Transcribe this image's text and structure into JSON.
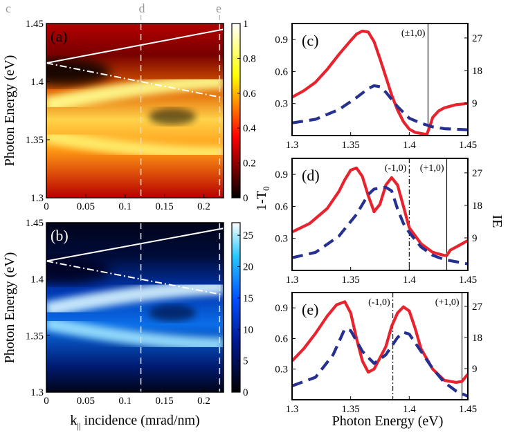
{
  "colors": {
    "solid": "#e8232d",
    "dashed": "#25308f",
    "side_left": "#e8232d",
    "side_right": "#2c3690"
  },
  "top_labels": [
    "c",
    "d",
    "e"
  ],
  "shared": {
    "left_ylabel": "Photon Energy (eV)",
    "bottom_xlabel": "k",
    "bottom_xlabel_sub": "||",
    "bottom_xlabel_rest": " incidence (mrad/nm)",
    "right_xlabel": "Photon Energy (eV)",
    "side_label_left": "1-T",
    "side_label_left_sub": "0",
    "side_label_right": "IE"
  },
  "chart_data": [
    {
      "id": "a",
      "panel_label": "(a)",
      "type": "heatmap",
      "colormap": "hot",
      "xlim": [
        0,
        0.225
      ],
      "ylim": [
        1.3,
        1.45
      ],
      "xticks": [
        "0",
        "0.05",
        "0.1",
        "0.15",
        "0.2"
      ],
      "yticks": [
        "1.3",
        "1.35",
        "1.4",
        "1.45"
      ],
      "colorbar_ticks": [
        "0",
        "0.2",
        "0.4",
        "0.6",
        "0.8",
        "1"
      ],
      "clim": [
        0,
        1
      ],
      "features": {
        "upper_mode": [
          1.345,
          1.3425
        ],
        "lower_mode": [
          1.392,
          1.392
        ],
        "crossing_k": 0.125,
        "solid_line": [
          1.416,
          1.445
        ],
        "dashdot_line": [
          1.416,
          1.386
        ],
        "dashed_k": [
          0.12,
          0.22
        ]
      }
    },
    {
      "id": "b",
      "panel_label": "(b)",
      "type": "heatmap",
      "colormap": "ice",
      "xlim": [
        0,
        0.225
      ],
      "ylim": [
        1.3,
        1.45
      ],
      "xticks": [
        "0",
        "0.05",
        "0.1",
        "0.15",
        "0.2"
      ],
      "yticks": [
        "1.3",
        "1.35",
        "1.4",
        "1.45"
      ],
      "colorbar_ticks": [
        "0",
        "5",
        "10",
        "15",
        "20",
        "25"
      ],
      "clim": [
        0,
        27
      ],
      "features": {
        "upper_mode": [
          1.353,
          1.346
        ],
        "lower_mode": [
          1.385,
          1.385
        ],
        "crossing_k": 0.125,
        "solid_line": [
          1.416,
          1.445
        ],
        "dashdot_line": [
          1.416,
          1.386
        ],
        "dashed_k": [
          0.12,
          0.22
        ]
      }
    },
    {
      "id": "c",
      "panel_label": "(c)",
      "type": "line",
      "xlim": [
        1.3,
        1.45
      ],
      "ylim_left": [
        0,
        1.05
      ],
      "ylim_right": [
        0,
        31
      ],
      "xticks": [
        "1.3",
        "1.35",
        "1.4",
        "1.45"
      ],
      "yticks_left": [
        "0.3",
        "0.6",
        "0.9"
      ],
      "yticks_right": [
        "9",
        "18",
        "27"
      ],
      "series": [
        {
          "name": "1-T0",
          "axis": "left",
          "style": "solid",
          "x": [
            1.3,
            1.31,
            1.32,
            1.33,
            1.34,
            1.35,
            1.355,
            1.36,
            1.365,
            1.37,
            1.375,
            1.38,
            1.385,
            1.39,
            1.395,
            1.4,
            1.405,
            1.41,
            1.415,
            1.418,
            1.42,
            1.425,
            1.43,
            1.44,
            1.45
          ],
          "y": [
            0.36,
            0.42,
            0.5,
            0.62,
            0.76,
            0.89,
            0.95,
            0.98,
            0.97,
            0.88,
            0.72,
            0.55,
            0.38,
            0.24,
            0.13,
            0.06,
            0.03,
            0.02,
            0.01,
            0.1,
            0.17,
            0.23,
            0.26,
            0.29,
            0.3
          ]
        },
        {
          "name": "IE",
          "axis": "right",
          "style": "dashed",
          "x": [
            1.3,
            1.32,
            1.34,
            1.355,
            1.365,
            1.37,
            1.375,
            1.38,
            1.39,
            1.4,
            1.41,
            1.42,
            1.43,
            1.45
          ],
          "y": [
            3.5,
            4.5,
            7.2,
            10.5,
            13,
            13.8,
            13.5,
            12,
            8,
            4.8,
            3.4,
            2.4,
            1.9,
            1.6
          ]
        }
      ],
      "vlines": [
        {
          "x": 1.416,
          "style": "solid",
          "label": "(±1,0)"
        }
      ]
    },
    {
      "id": "d",
      "panel_label": "(d)",
      "type": "line",
      "xlim": [
        1.3,
        1.45
      ],
      "ylim_left": [
        0,
        1.05
      ],
      "ylim_right": [
        0,
        31
      ],
      "xticks": [
        "1.3",
        "1.35",
        "1.4",
        "1.45"
      ],
      "yticks_left": [
        "0.3",
        "0.6",
        "0.9"
      ],
      "yticks_right": [
        "9",
        "18",
        "27"
      ],
      "series": [
        {
          "name": "1-T0",
          "axis": "left",
          "style": "solid",
          "x": [
            1.3,
            1.315,
            1.33,
            1.34,
            1.345,
            1.35,
            1.355,
            1.36,
            1.365,
            1.37,
            1.375,
            1.38,
            1.385,
            1.39,
            1.395,
            1.4,
            1.41,
            1.42,
            1.43,
            1.432,
            1.435,
            1.44,
            1.45
          ],
          "y": [
            0.36,
            0.44,
            0.58,
            0.74,
            0.85,
            0.94,
            0.96,
            0.88,
            0.7,
            0.55,
            0.62,
            0.8,
            0.87,
            0.8,
            0.6,
            0.4,
            0.25,
            0.17,
            0.14,
            0.14,
            0.19,
            0.22,
            0.28
          ]
        },
        {
          "name": "IE",
          "axis": "right",
          "style": "dashed",
          "x": [
            1.3,
            1.32,
            1.34,
            1.355,
            1.365,
            1.37,
            1.375,
            1.38,
            1.385,
            1.39,
            1.395,
            1.4,
            1.41,
            1.42,
            1.43,
            1.45
          ],
          "y": [
            3.5,
            5,
            9.5,
            15.5,
            21,
            22.5,
            22.8,
            23,
            22,
            17,
            13,
            10.5,
            6.5,
            4.2,
            3,
            1.8
          ]
        }
      ],
      "vlines": [
        {
          "x": 1.4,
          "style": "dashdot",
          "label": "(-1,0)"
        },
        {
          "x": 1.432,
          "style": "solid",
          "label": "(+1,0)"
        }
      ]
    },
    {
      "id": "e",
      "panel_label": "(e)",
      "type": "line",
      "xlim": [
        1.3,
        1.45
      ],
      "ylim_left": [
        0,
        1.05
      ],
      "ylim_right": [
        0,
        31
      ],
      "xticks": [
        "1.3",
        "1.35",
        "1.4",
        "1.45"
      ],
      "yticks_left": [
        "0.3",
        "0.6",
        "0.9"
      ],
      "yticks_right": [
        "9",
        "18",
        "27"
      ],
      "series": [
        {
          "name": "1-T0",
          "axis": "left",
          "style": "solid",
          "x": [
            1.3,
            1.31,
            1.32,
            1.33,
            1.338,
            1.345,
            1.35,
            1.355,
            1.36,
            1.365,
            1.37,
            1.38,
            1.385,
            1.39,
            1.395,
            1.4,
            1.405,
            1.41,
            1.42,
            1.43,
            1.44,
            1.445,
            1.45
          ],
          "y": [
            0.38,
            0.5,
            0.65,
            0.82,
            0.93,
            0.96,
            0.85,
            0.6,
            0.38,
            0.27,
            0.3,
            0.52,
            0.72,
            0.85,
            0.91,
            0.87,
            0.7,
            0.5,
            0.3,
            0.19,
            0.17,
            0.18,
            0.25
          ]
        },
        {
          "name": "IE",
          "axis": "right",
          "style": "dashed",
          "x": [
            1.3,
            1.32,
            1.335,
            1.345,
            1.35,
            1.36,
            1.37,
            1.38,
            1.39,
            1.395,
            1.4,
            1.41,
            1.42,
            1.43,
            1.44,
            1.45
          ],
          "y": [
            4,
            6.5,
            13,
            20.5,
            20,
            14,
            10.5,
            13,
            18,
            19.5,
            19,
            14,
            9,
            5,
            2.5,
            1
          ]
        }
      ],
      "vlines": [
        {
          "x": 1.386,
          "style": "dashdot",
          "label": "(-1,0)"
        },
        {
          "x": 1.445,
          "style": "solid",
          "label": "(+1,0)"
        }
      ]
    }
  ]
}
